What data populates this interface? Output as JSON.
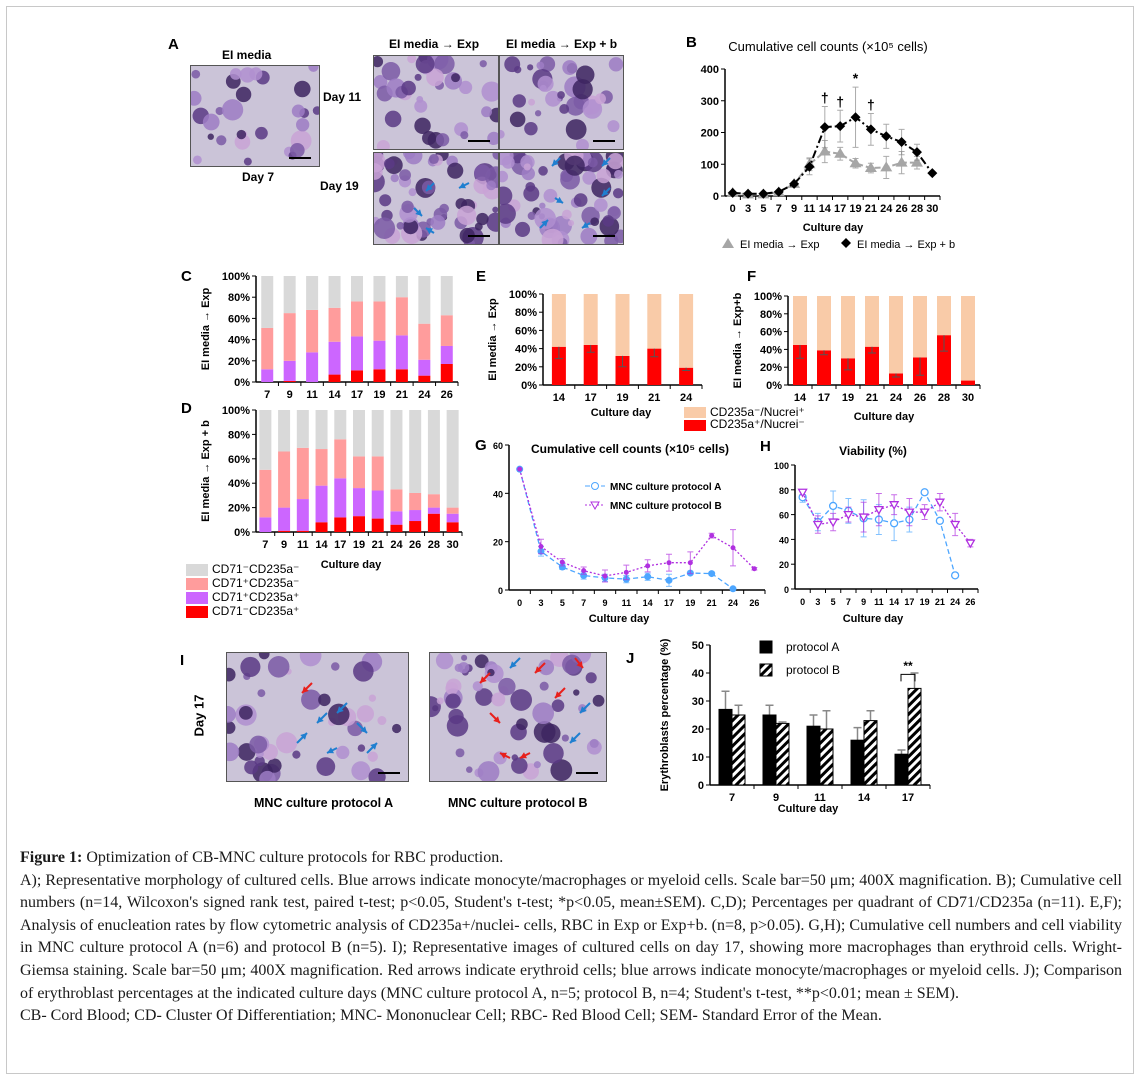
{
  "panel_labels": {
    "A": "A",
    "B": "B",
    "C": "C",
    "D": "D",
    "E": "E",
    "F": "F",
    "G": "G",
    "H": "H",
    "I": "I",
    "J": "J"
  },
  "panel_a": {
    "col_ei": "EI media",
    "col_exp": "EI media → Exp",
    "col_expb": "EI media → Exp + b",
    "day7": "Day 7",
    "day11": "Day 11",
    "day19": "Day 19"
  },
  "panel_i": {
    "day17": "Day 17",
    "label_a": "MNC culture protocol A",
    "label_b": "MNC culture protocol B"
  },
  "colors": {
    "cd71n_cd235n": "#d9d9d9",
    "cd71p_cd235n": "#ff9c9c",
    "cd71p_cd235p": "#cc66ff",
    "cd71n_cd235p": "#ff0000",
    "nucrei_pos": "#f9cba8",
    "protocol_a": "#4da6ff",
    "protocol_b": "#b030e0",
    "blue_arrow": "#1f7fd0",
    "red_arrow": "#e8201c"
  },
  "legend_cd": [
    "CD71⁻CD235a⁻",
    "CD71⁺CD235a⁻",
    "CD71⁺CD235a⁺",
    "CD71⁻CD235a⁺"
  ],
  "legend_ef": [
    "CD235a⁻/Nucrei⁺",
    "CD235a⁺/Nucrei⁻"
  ],
  "chart_data": [
    {
      "panel": "B",
      "type": "line",
      "title": "Cumulative cell counts (×10⁵ cells)",
      "xlabel": "Culture day",
      "ylabel": "",
      "ylim": [
        0,
        400
      ],
      "yticks": [
        0,
        100,
        200,
        300,
        400
      ],
      "categories": [
        "0",
        "3",
        "5",
        "7",
        "9",
        "11",
        "14",
        "17",
        "19",
        "21",
        "24",
        "26",
        "28",
        "30"
      ],
      "series": [
        {
          "name": "EI media → Exp",
          "marker": "triangle",
          "color": "#a6a6a6",
          "values": [
            10,
            5,
            5,
            12,
            38,
            100,
            140,
            133,
            103,
            88,
            90,
            105,
            105,
            null
          ],
          "errors": [
            2,
            2,
            2,
            3,
            5,
            20,
            35,
            20,
            15,
            15,
            35,
            35,
            20,
            null
          ]
        },
        {
          "name": "EI media → Exp + b",
          "marker": "diamond",
          "color": "#000000",
          "values": [
            10,
            7,
            7,
            13,
            38,
            92,
            217,
            220,
            248,
            210,
            188,
            170,
            138,
            72
          ],
          "errors": [
            2,
            2,
            2,
            3,
            5,
            25,
            65,
            50,
            95,
            50,
            38,
            40,
            25,
            5
          ]
        }
      ],
      "annotations": [
        {
          "x": "14",
          "text": "†"
        },
        {
          "x": "17",
          "text": "†"
        },
        {
          "x": "19",
          "text": "*"
        },
        {
          "x": "21",
          "text": "†"
        }
      ]
    },
    {
      "panel": "C",
      "type": "bar",
      "stacked": true,
      "ylabel": "EI media → Exp",
      "xlabel": "",
      "ylim": [
        0,
        100
      ],
      "yticks": [
        "0%",
        "20%",
        "40%",
        "60%",
        "80%",
        "100%"
      ],
      "categories": [
        "7",
        "9",
        "11",
        "14",
        "17",
        "19",
        "21",
        "24",
        "26"
      ],
      "series": [
        {
          "name": "CD71⁻CD235a⁺",
          "values": [
            0,
            1,
            0,
            7,
            11,
            12,
            12,
            6,
            17
          ]
        },
        {
          "name": "CD71⁺CD235a⁺",
          "values": [
            12,
            19,
            28,
            31,
            32,
            27,
            32,
            15,
            17
          ]
        },
        {
          "name": "CD71⁺CD235a⁻",
          "values": [
            39,
            45,
            40,
            32,
            33,
            37,
            36,
            34,
            29
          ]
        },
        {
          "name": "CD71⁻CD235a⁻",
          "values": [
            49,
            35,
            32,
            30,
            24,
            24,
            20,
            45,
            37
          ]
        }
      ]
    },
    {
      "panel": "D",
      "type": "bar",
      "stacked": true,
      "ylabel": "EI media → Exp + b",
      "xlabel": "Culture day",
      "ylim": [
        0,
        100
      ],
      "yticks": [
        "0%",
        "20%",
        "40%",
        "60%",
        "80%",
        "100%"
      ],
      "categories": [
        "7",
        "9",
        "11",
        "14",
        "17",
        "19",
        "21",
        "24",
        "26",
        "28",
        "30"
      ],
      "series": [
        {
          "name": "CD71⁻CD235a⁺",
          "values": [
            0,
            1,
            1,
            8,
            12,
            13,
            11,
            6,
            9,
            15,
            8
          ]
        },
        {
          "name": "CD71⁺CD235a⁺",
          "values": [
            12,
            19,
            26,
            30,
            32,
            23,
            23,
            11,
            9,
            5,
            7
          ]
        },
        {
          "name": "CD71⁺CD235a⁻",
          "values": [
            39,
            46,
            42,
            30,
            32,
            26,
            28,
            18,
            14,
            11,
            5
          ]
        },
        {
          "name": "CD71⁻CD235a⁻",
          "values": [
            49,
            34,
            31,
            32,
            24,
            38,
            38,
            65,
            68,
            69,
            80
          ]
        }
      ]
    },
    {
      "panel": "E",
      "type": "bar",
      "stacked": true,
      "ylabel": "EI media → Exp",
      "xlabel": "Culture day",
      "ylim": [
        0,
        100
      ],
      "yticks": [
        "0%",
        "20%",
        "40%",
        "60%",
        "80%",
        "100%"
      ],
      "categories": [
        "14",
        "17",
        "19",
        "21",
        "24"
      ],
      "series": [
        {
          "name": "CD235a⁺/Nucrei⁻",
          "values": [
            42,
            44,
            32,
            40,
            19
          ],
          "errors": [
            13,
            8,
            12,
            9,
            3
          ]
        },
        {
          "name": "CD235a⁻/Nucrei⁺",
          "values": [
            58,
            56,
            68,
            60,
            81
          ]
        }
      ]
    },
    {
      "panel": "F",
      "type": "bar",
      "stacked": true,
      "ylabel": "EI media → Exp+b",
      "xlabel": "Culture day",
      "ylim": [
        0,
        100
      ],
      "yticks": [
        "0%",
        "20%",
        "40%",
        "60%",
        "80%",
        "100%"
      ],
      "categories": [
        "14",
        "17",
        "19",
        "21",
        "24",
        "26",
        "28",
        "30"
      ],
      "series": [
        {
          "name": "CD235a⁺/Nucrei⁻",
          "values": [
            45,
            39,
            30,
            43,
            13,
            31,
            56,
            5
          ],
          "errors": [
            15,
            5,
            13,
            7,
            4,
            20,
            18,
            0
          ]
        },
        {
          "name": "CD235a⁻/Nucrei⁺",
          "values": [
            55,
            61,
            70,
            57,
            87,
            69,
            44,
            95
          ]
        }
      ]
    },
    {
      "panel": "G",
      "type": "line",
      "title": "Cumulative cell counts (×10⁵ cells)",
      "xlabel": "Culture day",
      "ylabel": "",
      "ylim": [
        0,
        60
      ],
      "yticks": [
        0,
        20,
        40,
        60
      ],
      "categories": [
        "0",
        "3",
        "5",
        "7",
        "9",
        "11",
        "14",
        "17",
        "19",
        "21",
        "24",
        "26"
      ],
      "series": [
        {
          "name": "MNC culture protocol A",
          "marker": "circle-filled",
          "color": "#4da6ff",
          "values": [
            50,
            16,
            9.5,
            6,
            5,
            4.5,
            5.5,
            4,
            7,
            6.8,
            0.5,
            null
          ],
          "errors": [
            0,
            2,
            1,
            1.5,
            1.5,
            1.5,
            1.5,
            2.5,
            0.5,
            0.5,
            0.5,
            null
          ]
        },
        {
          "name": "MNC culture protocol B",
          "marker": "circle-small",
          "color": "#b030e0",
          "values": [
            50,
            18,
            11.5,
            8,
            5.8,
            7.3,
            10,
            11.3,
            11.3,
            22.5,
            17.5,
            8.8
          ],
          "errors": [
            0,
            3,
            1.5,
            1.5,
            2.5,
            3,
            2.5,
            3.5,
            4.5,
            1,
            7.5,
            0.5
          ]
        }
      ]
    },
    {
      "panel": "H",
      "type": "line",
      "title": "Viability (%)",
      "xlabel": "Culture day",
      "ylabel": "",
      "ylim": [
        0,
        100
      ],
      "yticks": [
        0,
        20,
        40,
        60,
        80,
        100
      ],
      "categories": [
        "0",
        "3",
        "5",
        "7",
        "9",
        "11",
        "14",
        "17",
        "19",
        "21",
        "24",
        "26"
      ],
      "series": [
        {
          "name": "MNC culture protocol A",
          "marker": "circle-open",
          "color": "#4da6ff",
          "values": [
            74,
            54,
            67,
            63,
            57,
            56,
            53,
            56,
            78,
            55,
            11,
            null
          ],
          "errors": [
            4,
            7,
            12,
            10,
            15,
            12,
            14,
            10,
            1,
            1,
            1,
            null
          ]
        },
        {
          "name": "MNC culture protocol B",
          "marker": "triangle-down-open",
          "color": "#b030e0",
          "values": [
            78,
            52,
            54,
            60,
            58,
            64,
            68,
            62,
            62,
            70,
            52,
            37
          ],
          "errors": [
            2,
            7,
            7,
            6,
            12,
            13,
            8,
            11,
            6,
            7,
            9,
            3
          ]
        }
      ]
    },
    {
      "panel": "J",
      "type": "bar",
      "grouped": true,
      "ylabel": "Erythroblasts percentage (%)",
      "xlabel": "Culture day",
      "ylim": [
        0,
        50
      ],
      "yticks": [
        0,
        10,
        20,
        30,
        40,
        50
      ],
      "categories": [
        "7",
        "9",
        "11",
        "14",
        "17"
      ],
      "series": [
        {
          "name": "protocol A",
          "pattern": "solid",
          "values": [
            27,
            25,
            21,
            16,
            11
          ],
          "errors": [
            6.5,
            3.5,
            4,
            4.5,
            1.5
          ]
        },
        {
          "name": "protocol B",
          "pattern": "hatched",
          "values": [
            25,
            22,
            20,
            23,
            34.5
          ],
          "errors": [
            3.5,
            0.5,
            6.5,
            3.5,
            5.5
          ]
        }
      ],
      "annotations": [
        {
          "x": "17",
          "text": "**"
        }
      ]
    }
  ],
  "caption": {
    "figure_label": "Figure 1:",
    "title": " Optimization of CB-MNC culture protocols for RBC production.",
    "body": "A); Representative morphology of cultured cells. Blue arrows indicate monocyte/macrophages or myeloid cells. Scale bar=50 μm; 400X magnification. B); Cumulative cell numbers (n=14, Wilcoxon's signed rank test, paired t-test; p<0.05, Student's t-test; *p<0.05, mean±SEM). C,D); Percentages per quadrant of CD71/CD235a (n=11). E,F); Analysis of enucleation rates by flow cytometric analysis of CD235a+/nuclei- cells, RBC in Exp or Exp+b. (n=8, p>0.05). G,H); Cumulative cell numbers and cell viability in MNC culture protocol A (n=6) and protocol B (n=5). I); Representative images of cultured cells on day 17, showing more macrophages than erythroid cells. Wright-Giemsa staining. Scale bar=50 μm; 400X magnification. Red arrows indicate erythroid cells; blue arrows indicate monocyte/macrophages or myeloid cells. J); Comparison of erythroblast percentages at the indicated culture days (MNC culture protocol A, n=5; protocol B, n=4; Student's t-test, **p<0.01; mean ± SEM).",
    "abbreviations": "CB- Cord Blood; CD- Cluster Of Differentiation; MNC- Mononuclear Cell; RBC- Red Blood Cell; SEM- Standard Error of the Mean."
  }
}
